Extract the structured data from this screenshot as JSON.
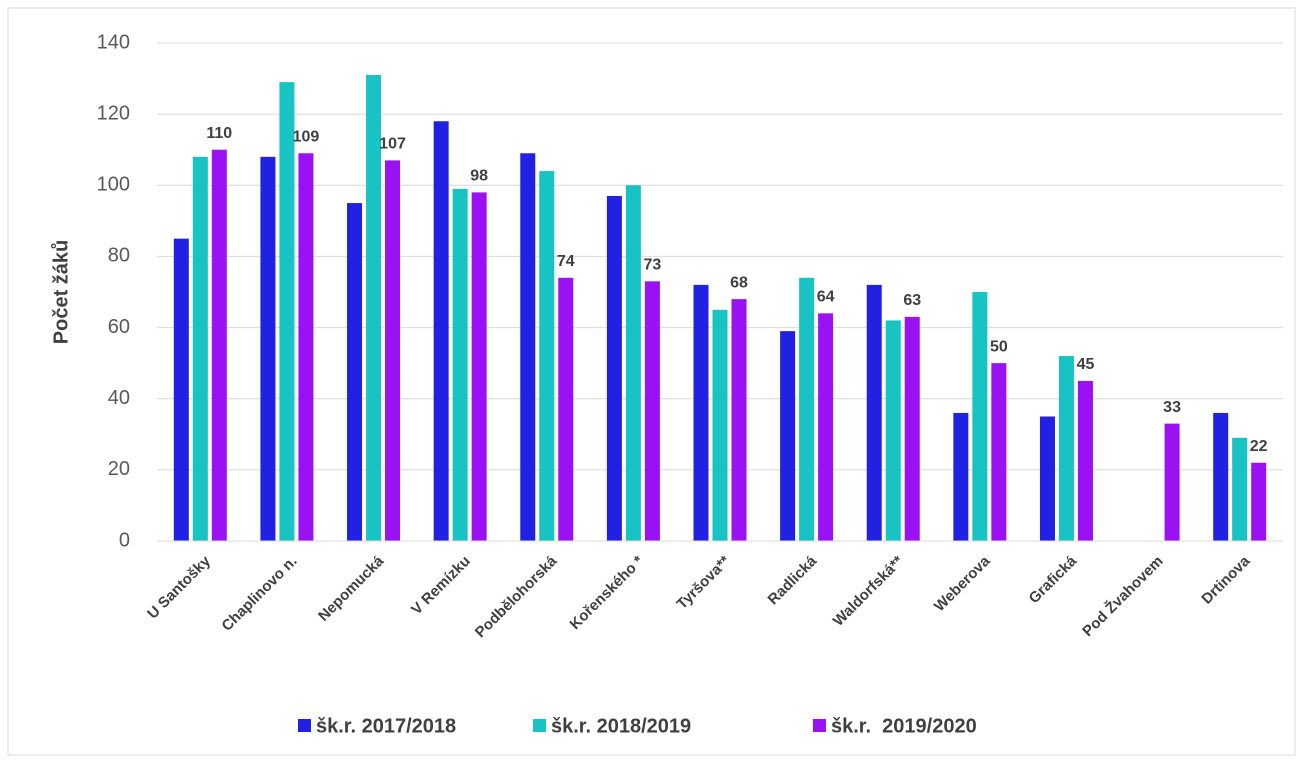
{
  "chart_data": {
    "type": "bar",
    "y_label": "Počet žáků",
    "categories": [
      "U Santošky",
      "Chaplinovo n.",
      "Nepomucká",
      "V Remízku",
      "Podbělohorská",
      "Kořenského *",
      "Tyršova**",
      "Radlická",
      "Waldorfská**",
      "Weberova",
      "Grafická",
      "Pod Žvahovem",
      "Drtinova"
    ],
    "series": [
      {
        "name": "šk.r. 2017/2018",
        "color": "#2121e3",
        "values": [
          85,
          108,
          95,
          118,
          109,
          97,
          72,
          59,
          72,
          36,
          35,
          null,
          36
        ]
      },
      {
        "name": "šk.r. 2018/2019",
        "color": "#17c3c3",
        "values": [
          108,
          129,
          131,
          99,
          104,
          100,
          65,
          74,
          62,
          70,
          52,
          null,
          29
        ]
      },
      {
        "name": "šk.r.  2019/2020",
        "color": "#9a12f4",
        "values": [
          110,
          109,
          107,
          98,
          74,
          73,
          68,
          64,
          63,
          50,
          45,
          33,
          22
        ],
        "show_values": true
      }
    ],
    "ylim": [
      0,
      140
    ],
    "yticks": [
      0,
      20,
      40,
      60,
      80,
      100,
      120,
      140
    ],
    "grid": true,
    "legend": "bottom"
  }
}
